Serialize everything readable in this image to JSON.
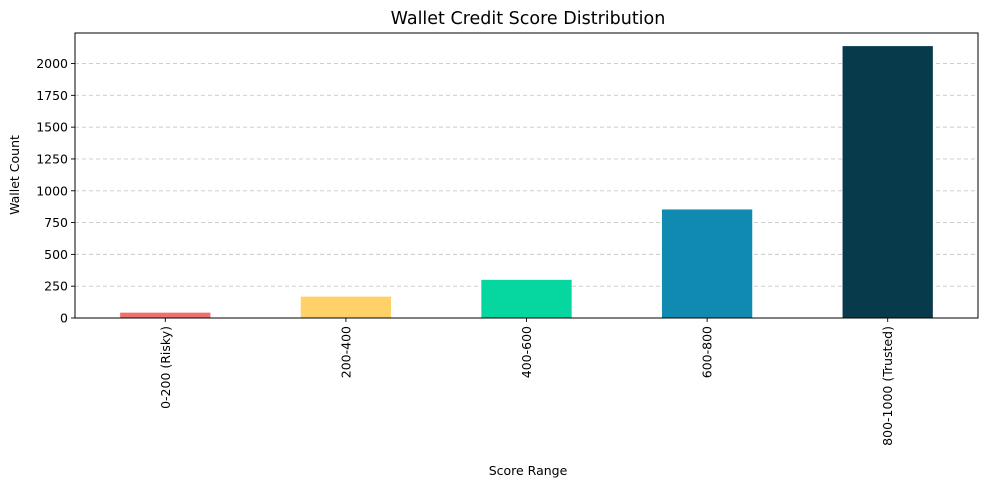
{
  "chart_data": {
    "type": "bar",
    "title": "Wallet Credit Score Distribution",
    "xlabel": "Score Range",
    "ylabel": "Wallet Count",
    "categories": [
      "0-200 (Risky)",
      "200-400",
      "400-600",
      "600-800",
      "800-1000 (Trusted)"
    ],
    "values": [
      42,
      168,
      300,
      853,
      2137
    ],
    "colors": [
      "#ef6f6c",
      "#ffd166",
      "#06d6a0",
      "#118ab2",
      "#073b4c"
    ],
    "ylim": [
      0,
      2240
    ],
    "yticks": [
      0,
      250,
      500,
      750,
      1000,
      1250,
      1500,
      1750,
      2000
    ],
    "grid": "y-dashed",
    "legend": "none"
  }
}
